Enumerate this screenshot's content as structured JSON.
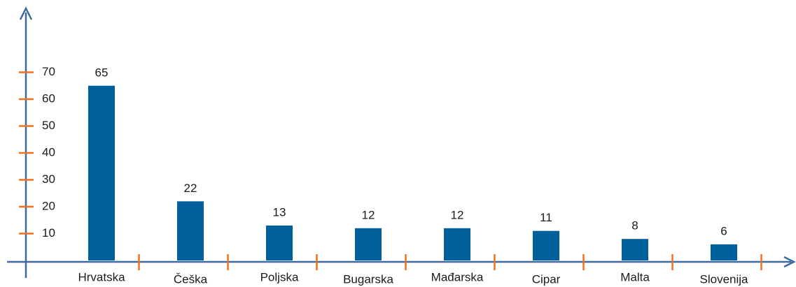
{
  "chart_data": {
    "type": "bar",
    "categories": [
      "Hrvatska",
      "Češka",
      "Poljska",
      "Bugarska",
      "Mađarska",
      "Cipar",
      "Malta",
      "Slovenija"
    ],
    "values": [
      65,
      22,
      13,
      12,
      12,
      11,
      8,
      6
    ],
    "color": "#00609c",
    "ylim": [
      0,
      93
    ],
    "yticks": [
      10,
      20,
      30,
      40,
      50,
      60,
      70
    ],
    "grid": false
  }
}
